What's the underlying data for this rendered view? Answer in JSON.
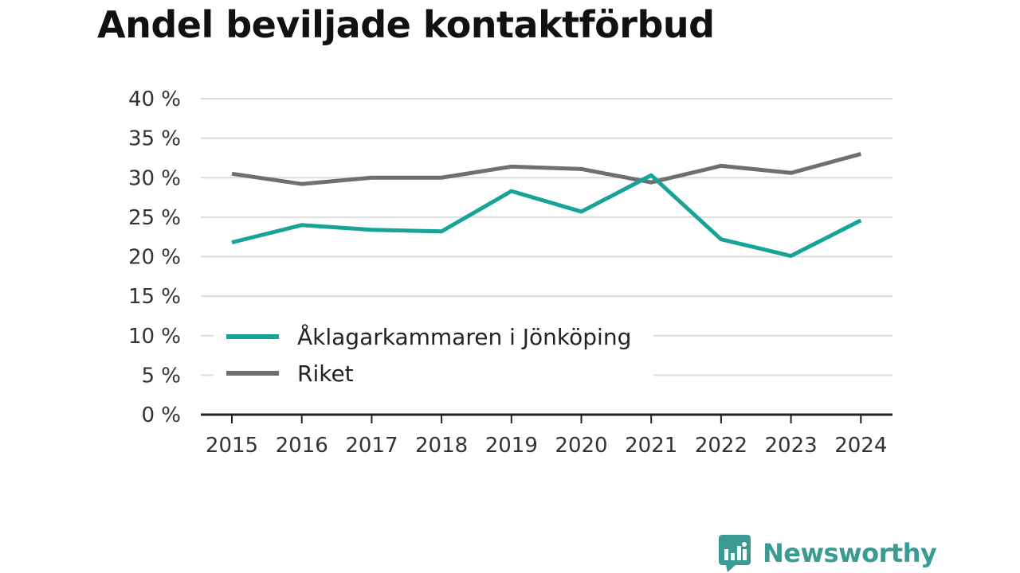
{
  "chart_data": {
    "type": "line",
    "title": "Andel beviljade kontaktförbud",
    "xlabel": "",
    "ylabel": "",
    "x": [
      "2015",
      "2016",
      "2017",
      "2018",
      "2019",
      "2020",
      "2021",
      "2022",
      "2023",
      "2024"
    ],
    "ylim": [
      0,
      40
    ],
    "yticks": [
      0,
      5,
      10,
      15,
      20,
      25,
      30,
      35,
      40
    ],
    "ytick_labels": [
      "0 %",
      "5 %",
      "10 %",
      "15 %",
      "20 %",
      "25 %",
      "30 %",
      "35 %",
      "40 %"
    ],
    "grid": true,
    "legend": "lower-left",
    "series": [
      {
        "name": "Åklagarkammaren i Jönköping",
        "color": "#17a398",
        "values": [
          21.8,
          24.0,
          23.4,
          23.2,
          28.3,
          25.7,
          30.3,
          22.2,
          20.1,
          24.6
        ]
      },
      {
        "name": "Riket",
        "color": "#6f6e74",
        "values": [
          30.5,
          29.2,
          30.0,
          30.0,
          31.4,
          31.1,
          29.4,
          31.5,
          30.6,
          33.0
        ]
      }
    ]
  },
  "logo": {
    "text": "Newsworthy",
    "color": "#3a9a94"
  }
}
